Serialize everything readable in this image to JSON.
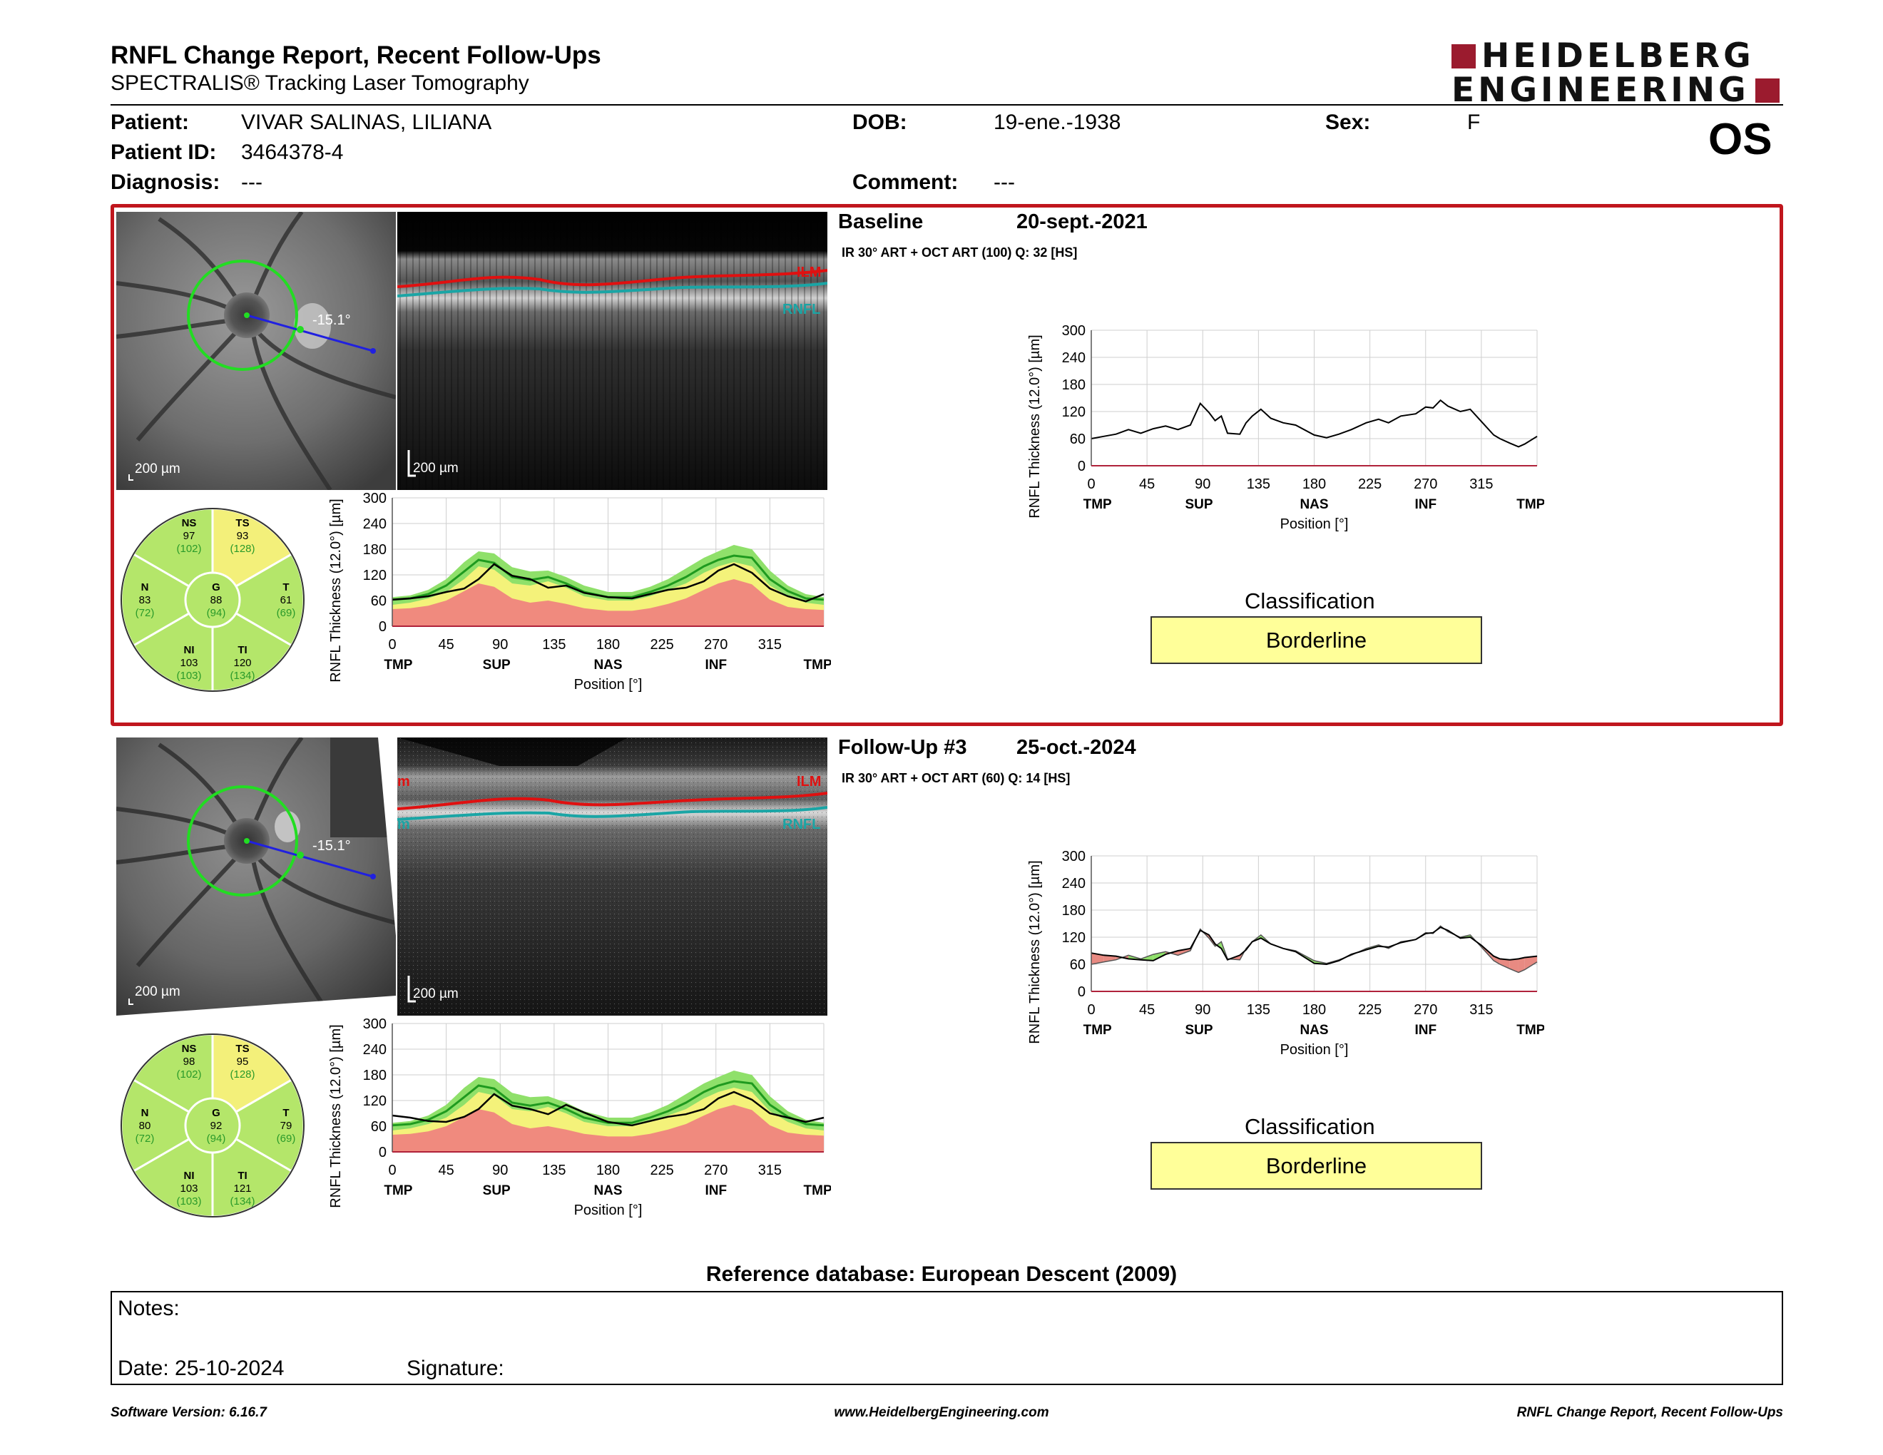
{
  "report": {
    "title": "RNFL Change Report, Recent Follow-Ups",
    "subtitle": "SPECTRALIS® Tracking Laser Tomography"
  },
  "logo": {
    "line1": "HEIDELBERG",
    "line2": "ENGINEERING",
    "brand_color": "#9b1b2e"
  },
  "patient": {
    "patient_label": "Patient:",
    "patient_name": "VIVAR SALINAS, LILIANA",
    "id_label": "Patient ID:",
    "id_value": "3464378-4",
    "diagnosis_label": "Diagnosis:",
    "diagnosis_value": "---",
    "dob_label": "DOB:",
    "dob_value": "19-ene.-1938",
    "comment_label": "Comment:",
    "comment_value": "---",
    "sex_label": "Sex:",
    "sex_value": "F",
    "eye": "OS"
  },
  "baseline": {
    "title": "Baseline",
    "date": "20-sept.-2021",
    "acq": "IR 30° ART + OCT ART (100) Q: 32 [HS]",
    "angle_label": "-15.1°",
    "scale_fundus": "200 µm",
    "scale_oct": "200 µm",
    "layer_ilm": "ILM",
    "layer_rnfl": "RNFL",
    "sectors": {
      "NS": {
        "label": "NS",
        "value": "97",
        "ref": "(102)"
      },
      "TS": {
        "label": "TS",
        "value": "93",
        "ref": "(128)"
      },
      "N": {
        "label": "N",
        "value": "83",
        "ref": "(72)"
      },
      "G": {
        "label": "G",
        "value": "88",
        "ref": "(94)"
      },
      "T": {
        "label": "T",
        "value": "61",
        "ref": "(69)"
      },
      "NI": {
        "label": "NI",
        "value": "103",
        "ref": "(103)"
      },
      "TI": {
        "label": "TI",
        "value": "120",
        "ref": "(134)"
      }
    },
    "classification_title": "Classification",
    "classification": "Borderline"
  },
  "followup": {
    "title": "Follow-Up #3",
    "date": "25-oct.-2024",
    "acq": "IR 30° ART + OCT ART (60) Q: 14 [HS]",
    "angle_label": "-15.1°",
    "scale_fundus": "200 µm",
    "scale_oct": "200 µm",
    "layer_ilm": "ILM",
    "layer_rnfl": "RNFL",
    "sectors": {
      "NS": {
        "label": "NS",
        "value": "98",
        "ref": "(102)"
      },
      "TS": {
        "label": "TS",
        "value": "95",
        "ref": "(128)"
      },
      "N": {
        "label": "N",
        "value": "80",
        "ref": "(72)"
      },
      "G": {
        "label": "G",
        "value": "92",
        "ref": "(94)"
      },
      "T": {
        "label": "T",
        "value": "79",
        "ref": "(69)"
      },
      "NI": {
        "label": "NI",
        "value": "103",
        "ref": "(103)"
      },
      "TI": {
        "label": "TI",
        "value": "121",
        "ref": "(134)"
      }
    },
    "classification_title": "Classification",
    "classification": "Borderline"
  },
  "chart_data": [
    {
      "id": "baseline_profile",
      "type": "line",
      "ylabel": "RNFL Thickness (12.0°) [µm]",
      "xlabel": "Position [°]",
      "xlim": [
        0,
        360
      ],
      "ylim": [
        0,
        300
      ],
      "x_ticks": [
        0,
        45,
        90,
        135,
        180,
        225,
        270,
        315
      ],
      "y_ticks": [
        0,
        60,
        120,
        180,
        240,
        300
      ],
      "region_labels": [
        {
          "x": 5,
          "text": "TMP"
        },
        {
          "x": 87,
          "text": "SUP"
        },
        {
          "x": 180,
          "text": "NAS"
        },
        {
          "x": 270,
          "text": "INF"
        },
        {
          "x": 355,
          "text": "TMP"
        }
      ],
      "x": [
        0,
        10,
        20,
        30,
        40,
        50,
        60,
        70,
        80,
        88,
        95,
        100,
        105,
        110,
        120,
        125,
        130,
        137,
        145,
        155,
        165,
        180,
        190,
        200,
        210,
        222,
        232,
        240,
        250,
        262,
        270,
        276,
        282,
        288,
        298,
        306,
        315,
        325,
        330,
        338,
        345,
        350,
        360
      ],
      "series": [
        {
          "values": [
            60,
            65,
            70,
            80,
            72,
            82,
            88,
            80,
            90,
            138,
            118,
            100,
            110,
            72,
            70,
            95,
            110,
            125,
            105,
            95,
            90,
            68,
            62,
            70,
            80,
            95,
            103,
            95,
            110,
            115,
            130,
            128,
            145,
            132,
            120,
            125,
            98,
            68,
            60,
            50,
            42,
            48,
            65
          ]
        }
      ]
    },
    {
      "id": "baseline_normative",
      "type": "area",
      "ylabel": "RNFL Thickness (12.0°) [µm]",
      "xlabel": "Position [°]",
      "xlim": [
        0,
        360
      ],
      "ylim": [
        0,
        300
      ],
      "x_ticks": [
        0,
        45,
        90,
        135,
        180,
        225,
        270,
        315
      ],
      "y_ticks": [
        0,
        60,
        120,
        180,
        240,
        300
      ],
      "region_labels": [
        {
          "x": 5,
          "text": "TMP"
        },
        {
          "x": 87,
          "text": "SUP"
        },
        {
          "x": 180,
          "text": "NAS"
        },
        {
          "x": 270,
          "text": "INF"
        },
        {
          "x": 355,
          "text": "TMP"
        }
      ],
      "x": [
        0,
        15,
        30,
        45,
        60,
        72,
        85,
        100,
        115,
        130,
        145,
        160,
        180,
        200,
        215,
        230,
        245,
        260,
        272,
        285,
        300,
        315,
        330,
        345,
        360
      ],
      "series": [
        {
          "values": [
            50,
            55,
            65,
            80,
            110,
            140,
            132,
            100,
            95,
            105,
            90,
            70,
            60,
            60,
            70,
            85,
            100,
            125,
            140,
            150,
            140,
            95,
            70,
            55,
            50
          ]
        },
        {
          "values": [
            68,
            72,
            85,
            110,
            150,
            175,
            170,
            138,
            128,
            130,
            115,
            95,
            80,
            80,
            92,
            110,
            135,
            160,
            175,
            190,
            180,
            130,
            95,
            75,
            68
          ]
        },
        {
          "values": [
            40,
            42,
            48,
            60,
            82,
            100,
            92,
            65,
            55,
            60,
            52,
            42,
            36,
            36,
            42,
            52,
            65,
            85,
            100,
            110,
            98,
            62,
            45,
            40,
            38
          ]
        },
        {
          "values": [
            62,
            65,
            75,
            95,
            128,
            155,
            148,
            115,
            108,
            115,
            100,
            80,
            68,
            68,
            80,
            95,
            115,
            140,
            155,
            165,
            160,
            110,
            82,
            65,
            62
          ]
        },
        {
          "values": [
            62,
            65,
            70,
            80,
            88,
            110,
            145,
            118,
            110,
            90,
            95,
            78,
            68,
            65,
            75,
            85,
            90,
            105,
            130,
            145,
            125,
            88,
            70,
            58,
            75
          ]
        }
      ]
    },
    {
      "id": "followup_profile",
      "type": "line",
      "ylabel": "RNFL Thickness (12.0°) [µm]",
      "xlabel": "Position [°]",
      "xlim": [
        0,
        360
      ],
      "ylim": [
        0,
        300
      ],
      "x_ticks": [
        0,
        45,
        90,
        135,
        180,
        225,
        270,
        315
      ],
      "y_ticks": [
        0,
        60,
        120,
        180,
        240,
        300
      ],
      "region_labels": [
        {
          "x": 5,
          "text": "TMP"
        },
        {
          "x": 87,
          "text": "SUP"
        },
        {
          "x": 180,
          "text": "NAS"
        },
        {
          "x": 270,
          "text": "INF"
        },
        {
          "x": 355,
          "text": "TMP"
        }
      ],
      "x": [
        0,
        10,
        20,
        30,
        40,
        50,
        60,
        70,
        80,
        88,
        95,
        100,
        105,
        110,
        120,
        125,
        130,
        137,
        145,
        155,
        165,
        180,
        190,
        200,
        210,
        222,
        232,
        240,
        250,
        262,
        270,
        276,
        282,
        288,
        298,
        306,
        315,
        325,
        330,
        338,
        345,
        350,
        360
      ],
      "series": [
        {
          "values": [
            85,
            80,
            78,
            72,
            70,
            68,
            82,
            90,
            95,
            135,
            125,
            105,
            95,
            70,
            80,
            92,
            110,
            118,
            105,
            95,
            88,
            62,
            60,
            68,
            82,
            92,
            100,
            98,
            108,
            115,
            128,
            130,
            142,
            135,
            118,
            120,
            102,
            78,
            72,
            70,
            72,
            75,
            78
          ]
        },
        {
          "values": [
            60,
            65,
            70,
            80,
            72,
            82,
            88,
            80,
            90,
            138,
            118,
            100,
            110,
            72,
            70,
            95,
            110,
            125,
            105,
            95,
            90,
            68,
            62,
            70,
            80,
            95,
            103,
            95,
            110,
            115,
            130,
            128,
            145,
            132,
            120,
            125,
            98,
            68,
            60,
            50,
            42,
            48,
            65
          ]
        }
      ]
    },
    {
      "id": "followup_normative",
      "type": "area",
      "ylabel": "RNFL Thickness (12.0°) [µm]",
      "xlabel": "Position [°]",
      "xlim": [
        0,
        360
      ],
      "ylim": [
        0,
        300
      ],
      "x_ticks": [
        0,
        45,
        90,
        135,
        180,
        225,
        270,
        315
      ],
      "y_ticks": [
        0,
        60,
        120,
        180,
        240,
        300
      ],
      "region_labels": [
        {
          "x": 5,
          "text": "TMP"
        },
        {
          "x": 87,
          "text": "SUP"
        },
        {
          "x": 180,
          "text": "NAS"
        },
        {
          "x": 270,
          "text": "INF"
        },
        {
          "x": 355,
          "text": "TMP"
        }
      ],
      "x": [
        0,
        15,
        30,
        45,
        60,
        72,
        85,
        100,
        115,
        130,
        145,
        160,
        180,
        200,
        215,
        230,
        245,
        260,
        272,
        285,
        300,
        315,
        330,
        345,
        360
      ],
      "series": [
        {
          "values": [
            50,
            55,
            65,
            80,
            110,
            140,
            132,
            100,
            95,
            105,
            90,
            70,
            60,
            60,
            70,
            85,
            100,
            125,
            140,
            150,
            140,
            95,
            70,
            55,
            50
          ]
        },
        {
          "values": [
            68,
            72,
            85,
            110,
            150,
            175,
            170,
            138,
            128,
            130,
            115,
            95,
            80,
            80,
            92,
            110,
            135,
            160,
            175,
            190,
            180,
            130,
            95,
            75,
            68
          ]
        },
        {
          "values": [
            40,
            42,
            48,
            60,
            82,
            100,
            92,
            65,
            55,
            60,
            52,
            42,
            36,
            36,
            42,
            52,
            65,
            85,
            100,
            110,
            98,
            62,
            45,
            40,
            38
          ]
        },
        {
          "values": [
            62,
            65,
            75,
            95,
            128,
            155,
            148,
            115,
            108,
            115,
            100,
            80,
            68,
            68,
            80,
            95,
            115,
            140,
            155,
            165,
            160,
            110,
            82,
            65,
            62
          ]
        },
        {
          "values": [
            85,
            80,
            72,
            70,
            82,
            100,
            135,
            108,
            100,
            88,
            110,
            92,
            70,
            62,
            72,
            82,
            88,
            100,
            125,
            140,
            122,
            90,
            80,
            70,
            80
          ]
        }
      ]
    }
  ],
  "colors": {
    "frame": "#c0161d",
    "green": "#8fe06a",
    "yellow": "#f4f27a",
    "red": "#f08a7e",
    "line_green": "#1f9a1f",
    "sector_green": "#b4e66a",
    "sector_yellow": "#f3f07a"
  },
  "reference_db": "Reference database: European Descent (2009)",
  "notes": {
    "label": "Notes:",
    "date": "Date: 25-10-2024",
    "signature": "Signature:"
  },
  "footer": {
    "left": "Software Version: 6.16.7",
    "center": "www.HeidelbergEngineering.com",
    "right": "RNFL Change Report, Recent Follow-Ups"
  }
}
